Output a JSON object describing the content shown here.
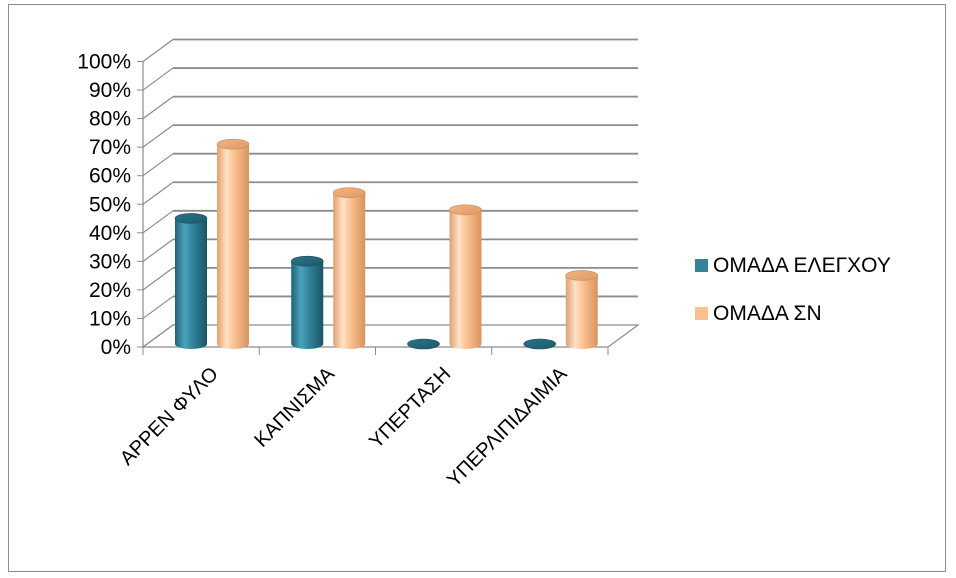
{
  "chart_data": {
    "type": "bar",
    "title": "",
    "xlabel": "",
    "ylabel": "",
    "ylim": [
      0,
      100
    ],
    "y_tick_labels": [
      "0%",
      "10%",
      "20%",
      "30%",
      "40%",
      "50%",
      "60%",
      "70%",
      "80%",
      "90%",
      "100%"
    ],
    "categories": [
      "ΑΡΡΕΝ ΦΥΛΟ",
      "ΚΑΠΝΙΣΜΑ",
      "ΥΠΕΡΤΑΣΗ",
      "ΥΠΕΡΛΙΠΙΔΑΙΜΙΑ"
    ],
    "series": [
      {
        "name": "ΟΜΑΔΑ ΕΛΕΓΧΟΥ",
        "values": [
          44,
          29,
          0,
          0
        ],
        "color": "#31849b"
      },
      {
        "name": "ΟΜΑΔΑ ΣΝ",
        "values": [
          70,
          53,
          47,
          24
        ],
        "color": "#fac090"
      }
    ],
    "legend_position": "right",
    "grid": true,
    "style": "3d-cylinder"
  }
}
